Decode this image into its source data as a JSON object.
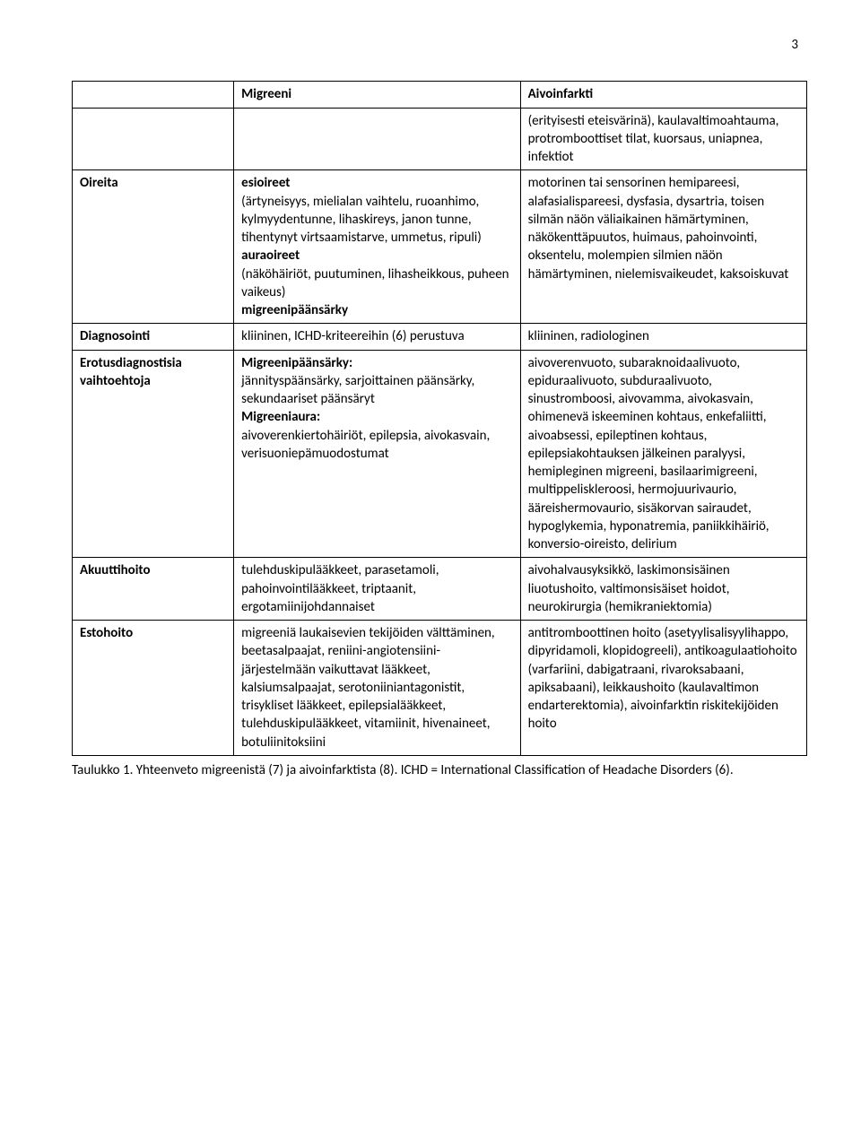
{
  "page_number": "3",
  "header": {
    "col1": "",
    "col2": "Migreeni",
    "col3": "Aivoinfarkti"
  },
  "precol3_extra": "(erityisesti eteisvärinä), kaulavaltimoahtauma, protromboottiset tilat, kuorsaus, uniapnea, infektiot",
  "rows": {
    "oireita": {
      "label": "Oireita",
      "c2_bold1": "esioireet",
      "c2_text1": "(ärtyneisyys, mielialan vaihtelu, ruoanhimo, kylmyydentunne, lihaskireys, janon tunne, tihentynyt virtsaamistarve, ummetus, ripuli)",
      "c2_bold2": "auraoireet",
      "c2_text2": "(näköhäiriöt, puutuminen, lihasheikkous, puheen vaikeus)",
      "c2_bold3": "migreenipäänsärky",
      "c3": "motorinen tai sensorinen hemipareesi, alafasialispareesi, dysfasia, dysartria, toisen silmän näön väliaikainen hämärtyminen, näkökenttäpuutos, huimaus, pahoinvointi, oksentelu, molempien silmien näön hämärtyminen, nielemisvaikeudet, kaksoiskuvat"
    },
    "diagnosointi": {
      "label": "Diagnosointi",
      "c2": "kliininen, ICHD-kriteereihin (6) perustuva",
      "c3": "kliininen, radiologinen"
    },
    "erotus": {
      "label": "Erotusdiagnostisia vaihtoehtoja",
      "c2_bold1": "Migreenipäänsärky:",
      "c2_text1": "jännityspäänsärky, sarjoittainen päänsärky, sekundaariset päänsäryt",
      "c2_bold2": "Migreeniaura:",
      "c2_text2": "aivoverenkiertohäiriöt, epilepsia, aivokasvain, verisuoniepämuodostumat",
      "c3": "aivoverenvuoto, subaraknoidaalivuoto, epiduraalivuoto, subduraalivuoto, sinustromboosi, aivovamma, aivokasvain, ohimenevä iskeeminen kohtaus, enkefaliitti, aivoabsessi, epileptinen kohtaus, epilepsiakohtauksen jälkeinen paralyysi, hemipleginen migreeni, basilaarimigreeni, multippeliskleroosi, hermojuurivaurio, ääreishermovaurio, sisäkorvan sairaudet, hypoglykemia, hyponatremia, paniikkihäiriö, konversio-oireisto, delirium"
    },
    "akuuttihoito": {
      "label": "Akuuttihoito",
      "c2": "tulehduskipulääkkeet, parasetamoli, pahoinvointilääkkeet, triptaanit, ergotamiinijohdannaiset",
      "c3": "aivohalvausyksikkö, laskimonsisäinen liuotushoito, valtimonsisäiset hoidot, neurokirurgia (hemikraniektomia)"
    },
    "estohoito": {
      "label": "Estohoito",
      "c2": "migreeniä laukaisevien tekijöiden välttäminen, beetasalpaajat, reniini-angiotensiini-järjestelmään vaikuttavat lääkkeet, kalsiumsalpaajat, serotoniiniantagonistit, trisykliset lääkkeet, epilepsialääkkeet, tulehduskipulääkkeet, vitamiinit, hivenaineet, botuliinitoksiini",
      "c3": "antitromboottinen hoito (asetyylisalisyylihappo, dipyridamoli, klopidogreeli), antikoagulaatiohoito (varfariini, dabigatraani, rivaroksabaani, apiksabaani), leikkaushoito (kaulavaltimon endarterektomia), aivoinfarktin riskitekijöiden hoito"
    }
  },
  "caption": "Taulukko 1. Yhteenveto migreenistä (7) ja aivoinfarktista (8). ICHD = International Classification of Headache Disorders (6).",
  "colors": {
    "text": "#000000",
    "background": "#ffffff",
    "border": "#000000"
  },
  "font": {
    "family": "Calibri",
    "size_pt": 11
  }
}
